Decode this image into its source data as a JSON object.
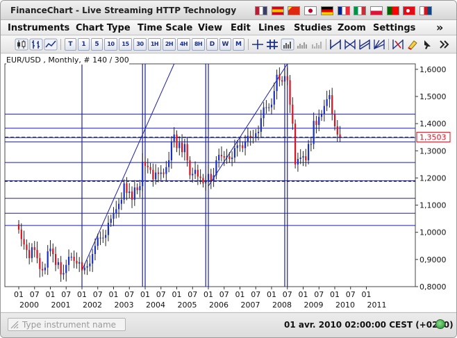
{
  "window": {
    "title": "FinanceChart - Live Streaming HTTP Technology",
    "flags": [
      {
        "country": "united-states",
        "colors": [
          "#b22234",
          "#ffffff",
          "#3c3b6e"
        ]
      },
      {
        "country": "spain",
        "colors": [
          "#c60b1e",
          "#ffc400",
          "#c60b1e"
        ]
      },
      {
        "country": "china",
        "colors": [
          "#de2910",
          "#ffde00"
        ]
      },
      {
        "country": "japan",
        "colors": [
          "#ffffff",
          "#bc002d"
        ]
      },
      {
        "country": "germany",
        "colors": [
          "#000000",
          "#dd0000",
          "#ffce00"
        ]
      },
      {
        "country": "france",
        "colors": [
          "#002395",
          "#ffffff",
          "#ed2939"
        ]
      },
      {
        "country": "italy",
        "colors": [
          "#009246",
          "#ffffff",
          "#ce2b37"
        ]
      },
      {
        "country": "poland",
        "colors": [
          "#ffffff",
          "#dc143c"
        ]
      },
      {
        "country": "portugal",
        "colors": [
          "#006600",
          "#ff0000"
        ]
      },
      {
        "country": "turkey",
        "colors": [
          "#e30a17",
          "#ffffff"
        ]
      },
      {
        "country": "czech-republic",
        "colors": [
          "#ffffff",
          "#d7141a",
          "#11457e"
        ]
      }
    ]
  },
  "menu": {
    "items": [
      "Instruments",
      "Chart Type",
      "Time Scale",
      "View",
      "Edit",
      "Lines",
      "Studies",
      "Zoom",
      "Settings"
    ],
    "more": "»"
  },
  "toolbar": {
    "timescale_buttons": [
      "T",
      "1",
      "5",
      "10",
      "15",
      "30",
      "1H",
      "2H",
      "4H",
      "8H",
      "D",
      "W",
      "M"
    ],
    "icons": [
      "candlestick-chart-icon",
      "bar-chart-icon",
      "line-chart-icon",
      "crosshair-icon",
      "grid-icon",
      "bar-volume-icon",
      "volume-icon",
      "trendline-icon",
      "fibonacci-icon",
      "channel-icon",
      "gann-icon",
      "cycle-lines-icon",
      "erase-icon",
      "cursor-icon",
      "more-icon"
    ]
  },
  "chart": {
    "caption": "EUR/USD , Monthly, # 140 / 300",
    "price_label": "1,3503",
    "colors": {
      "up": "#1a2fc4",
      "down": "#d8121e",
      "lines": "#1b1fa8",
      "price_marker": "#d8121e"
    }
  },
  "chart_data": {
    "type": "candlestick",
    "symbol": "EUR/USD",
    "interval": "Monthly",
    "ylim": [
      0.8,
      1.62
    ],
    "y_ticks": [
      "1,6000",
      "1,5000",
      "1,4000",
      "1,3000",
      "1,2000",
      "1,1000",
      "1,0000",
      "0,9000",
      "0,8000"
    ],
    "x_ticks": [
      "01",
      "07",
      "01",
      "07",
      "01",
      "07",
      "01",
      "07",
      "01",
      "07",
      "01",
      "07",
      "01",
      "07",
      "01",
      "07",
      "01",
      "07",
      "01",
      "07",
      "01",
      "07",
      "01"
    ],
    "x_years": [
      "2000",
      "2001",
      "2002",
      "2003",
      "2004",
      "2005",
      "2006",
      "2007",
      "2008",
      "2009",
      "2010",
      "2011"
    ],
    "last_price": 1.3503,
    "dashed_level": 1.188,
    "horizontal_levels": [
      1.435,
      1.383,
      1.3485,
      1.333,
      1.257,
      1.19,
      1.125,
      1.07,
      1.025
    ],
    "vertical_line_dates": [
      "2002-01",
      "2003-12",
      "2004-01",
      "2005-12",
      "2006-01",
      "2008-06",
      "2008-07"
    ],
    "trendlines": [
      {
        "from": [
          "2002-01",
          0.86
        ],
        "to": [
          "2004-12",
          1.62
        ]
      },
      {
        "from": [
          "2006-01",
          1.17
        ],
        "to": [
          "2008-07",
          1.62
        ]
      }
    ],
    "series": [
      {
        "name": "EUR/USD",
        "closes": [
          1.01,
          0.975,
          0.955,
          0.935,
          0.905,
          0.945,
          0.935,
          0.905,
          0.865,
          0.86,
          0.87,
          0.93,
          0.94,
          0.92,
          0.88,
          0.89,
          0.845,
          0.85,
          0.88,
          0.91,
          0.91,
          0.895,
          0.885,
          0.89,
          0.86,
          0.87,
          0.875,
          0.885,
          0.92,
          0.95,
          0.98,
          0.98,
          0.98,
          0.99,
          1.035,
          1.05,
          1.07,
          1.085,
          1.105,
          1.12,
          1.18,
          1.145,
          1.15,
          1.12,
          1.165,
          1.155,
          1.17,
          1.26,
          1.245,
          1.24,
          1.23,
          1.195,
          1.22,
          1.215,
          1.22,
          1.215,
          1.24,
          1.265,
          1.335,
          1.36,
          1.31,
          1.33,
          1.295,
          1.325,
          1.265,
          1.21,
          1.215,
          1.23,
          1.205,
          1.2,
          1.18,
          1.185,
          1.215,
          1.19,
          1.21,
          1.265,
          1.285,
          1.28,
          1.275,
          1.28,
          1.27,
          1.275,
          1.31,
          1.32,
          1.32,
          1.31,
          1.335,
          1.355,
          1.35,
          1.35,
          1.365,
          1.37,
          1.42,
          1.46,
          1.46,
          1.46,
          1.47,
          1.52,
          1.58,
          1.56,
          1.555,
          1.575,
          1.56,
          1.47,
          1.4,
          1.25,
          1.27,
          1.275,
          1.28,
          1.265,
          1.325,
          1.325,
          1.41,
          1.395,
          1.425,
          1.435,
          1.465,
          1.49,
          1.505,
          1.435,
          1.39,
          1.36,
          1.3503
        ]
      }
    ]
  },
  "status": {
    "instrument_placeholder": "Type instrument name",
    "timestamp": "01 avr. 2010 02:00:00  CEST (+0200)"
  }
}
